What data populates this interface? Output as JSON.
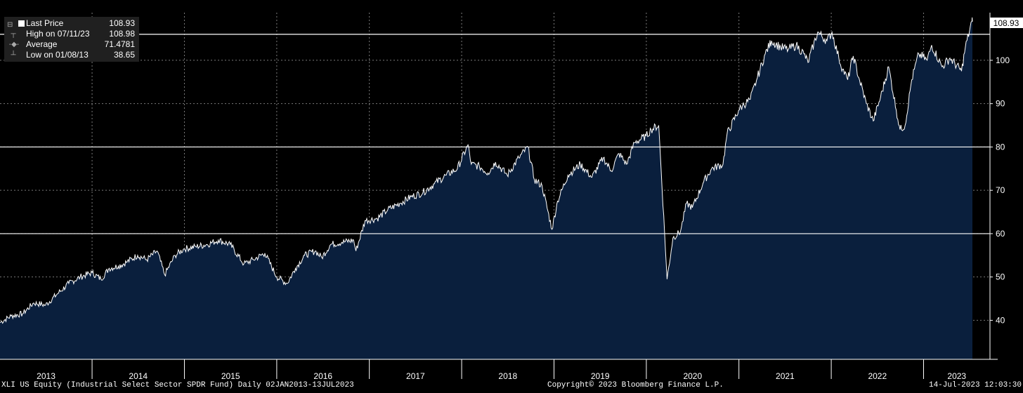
{
  "chart_data": {
    "type": "area",
    "title": "",
    "xlabel": "",
    "ylabel": "",
    "xlim": [
      "2013-01-02",
      "2023-07-13"
    ],
    "ylim": [
      31,
      111
    ],
    "y_ticks": [
      40,
      50,
      60,
      70,
      80,
      90,
      100
    ],
    "x_tick_labels": [
      "2013",
      "2014",
      "2015",
      "2016",
      "2017",
      "2018",
      "2019",
      "2020",
      "2021",
      "2022",
      "2023"
    ],
    "grid": true,
    "colors": {
      "background": "#000000",
      "area_fill": "#0a1f3d",
      "line": "#ffffff",
      "grid": "#7a7a7a",
      "legend_bg": "#202020",
      "last_price_box": "#ffffff"
    },
    "reference_lines": [
      {
        "y": 106,
        "style": "solid"
      },
      {
        "y": 80,
        "style": "solid"
      },
      {
        "y": 60,
        "style": "solid"
      }
    ],
    "last_value_label": "108.93",
    "series": [
      {
        "name": "Last Price",
        "x": [
          "2013-01-02",
          "2013-02-15",
          "2013-04-01",
          "2013-05-15",
          "2013-07-01",
          "2013-08-15",
          "2013-10-01",
          "2013-11-15",
          "2014-01-01",
          "2014-02-05",
          "2014-03-10",
          "2014-04-15",
          "2014-05-20",
          "2014-06-30",
          "2014-08-05",
          "2014-09-15",
          "2014-10-15",
          "2014-11-25",
          "2014-12-31",
          "2015-02-15",
          "2015-04-01",
          "2015-05-15",
          "2015-07-01",
          "2015-08-24",
          "2015-10-01",
          "2015-11-15",
          "2016-01-01",
          "2016-02-11",
          "2016-03-15",
          "2016-04-20",
          "2016-06-01",
          "2016-06-27",
          "2016-08-01",
          "2016-09-15",
          "2016-10-31",
          "2016-11-09",
          "2016-12-15",
          "2017-02-01",
          "2017-03-15",
          "2017-05-01",
          "2017-06-15",
          "2017-08-01",
          "2017-09-15",
          "2017-11-01",
          "2017-12-15",
          "2018-01-26",
          "2018-02-08",
          "2018-03-12",
          "2018-04-15",
          "2018-05-15",
          "2018-06-30",
          "2018-08-15",
          "2018-09-20",
          "2018-10-15",
          "2018-11-15",
          "2018-12-24",
          "2019-01-15",
          "2019-02-25",
          "2019-04-15",
          "2019-05-31",
          "2019-07-15",
          "2019-08-15",
          "2019-09-15",
          "2019-10-15",
          "2019-11-15",
          "2019-12-31",
          "2020-01-20",
          "2020-02-19",
          "2020-03-23",
          "2020-04-15",
          "2020-05-15",
          "2020-06-08",
          "2020-07-01",
          "2020-08-15",
          "2020-09-15",
          "2020-10-30",
          "2020-11-15",
          "2020-12-31",
          "2021-01-15",
          "2021-02-15",
          "2021-03-15",
          "2021-04-15",
          "2021-05-10",
          "2021-06-15",
          "2021-07-15",
          "2021-08-15",
          "2021-09-15",
          "2021-10-01",
          "2021-11-08",
          "2021-12-15",
          "2022-01-04",
          "2022-01-31",
          "2022-02-15",
          "2022-03-07",
          "2022-03-29",
          "2022-04-20",
          "2022-05-20",
          "2022-06-16",
          "2022-07-15",
          "2022-08-16",
          "2022-09-15",
          "2022-09-30",
          "2022-10-20",
          "2022-11-15",
          "2022-12-13",
          "2023-01-15",
          "2023-02-02",
          "2023-03-15",
          "2023-04-15",
          "2023-05-31",
          "2023-06-15",
          "2023-07-11",
          "2023-07-13"
        ],
        "values": [
          39.5,
          41.0,
          41.5,
          44.0,
          43.5,
          46.0,
          48.5,
          50.0,
          51.0,
          49.5,
          52.0,
          52.5,
          53.5,
          55.0,
          54.0,
          56.0,
          50.5,
          55.0,
          56.5,
          57.0,
          57.5,
          58.5,
          57.5,
          53.0,
          54.0,
          55.5,
          50.0,
          48.5,
          52.0,
          55.0,
          56.0,
          54.5,
          57.5,
          58.0,
          58.5,
          56.0,
          63.0,
          63.5,
          65.5,
          67.0,
          68.5,
          69.5,
          71.5,
          73.5,
          75.0,
          80.5,
          76.0,
          75.5,
          74.0,
          76.5,
          73.5,
          77.5,
          80.0,
          72.5,
          71.0,
          61.0,
          67.5,
          73.5,
          76.0,
          73.0,
          77.5,
          74.5,
          78.5,
          76.0,
          81.0,
          82.5,
          84.0,
          85.0,
          49.5,
          59.0,
          60.5,
          67.0,
          66.0,
          72.0,
          75.0,
          76.0,
          83.0,
          88.5,
          89.5,
          91.0,
          96.0,
          101.5,
          104.5,
          103.0,
          102.5,
          103.5,
          101.5,
          99.5,
          106.5,
          104.5,
          106.5,
          100.5,
          98.0,
          95.5,
          101.0,
          96.0,
          90.0,
          86.0,
          91.5,
          98.5,
          88.5,
          84.0,
          85.0,
          95.5,
          101.5,
          100.0,
          103.5,
          98.5,
          100.5,
          97.5,
          103.0,
          108.98,
          108.93
        ]
      }
    ]
  },
  "legend": {
    "rows": [
      {
        "label": "Last Price",
        "value": "108.93",
        "icon": "filled-square-icon"
      },
      {
        "label": "High on 07/11/23",
        "value": "108.98",
        "icon": "high-marker-icon"
      },
      {
        "label": "Average",
        "value": "71.4781",
        "icon": "average-line-icon"
      },
      {
        "label": "Low on 01/08/13",
        "value": "38.65",
        "icon": "low-marker-icon"
      }
    ]
  },
  "footer": {
    "left": "XLI US Equity (Industrial Select Sector SPDR Fund)  Daily 02JAN2013-13JUL2023",
    "center": "Copyright© 2023 Bloomberg Finance L.P.",
    "right": "14-Jul-2023 12:03:30"
  }
}
